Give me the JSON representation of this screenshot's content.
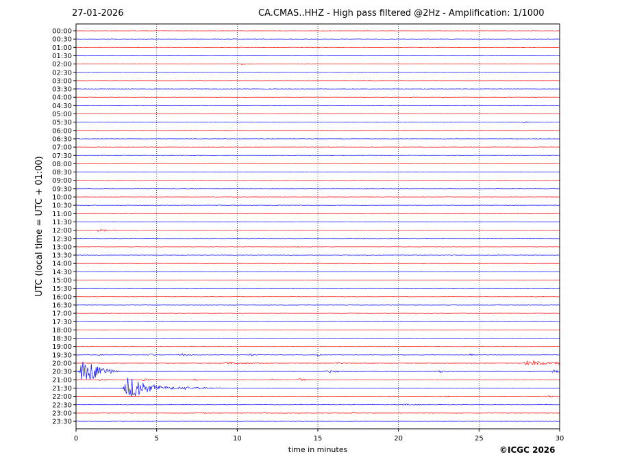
{
  "header": {
    "date": "27-01-2026",
    "title": "CA.CMAS..HHZ - High pass filtered @2Hz - Amplification: 1/1000"
  },
  "footer": {
    "copyright": "©ICGC 2026"
  },
  "chart_data": {
    "type": "line",
    "title": "CA.CMAS..HHZ - High pass filtered @2Hz - Amplification: 1/1000",
    "xlabel": "time in minutes",
    "ylabel": "UTC (local time = UTC + 01:00)",
    "xlim": [
      0,
      30
    ],
    "x_ticks": [
      0,
      5,
      10,
      15,
      20,
      25,
      30
    ],
    "vertical_grid": [
      5,
      10,
      15,
      20,
      25
    ],
    "rows": [
      "00:00",
      "00:30",
      "01:00",
      "01:30",
      "02:00",
      "02:30",
      "03:00",
      "03:30",
      "04:00",
      "04:30",
      "05:00",
      "05:30",
      "06:00",
      "06:30",
      "07:00",
      "07:30",
      "08:00",
      "08:30",
      "09:00",
      "09:30",
      "10:00",
      "10:30",
      "11:00",
      "11:30",
      "12:00",
      "12:30",
      "13:00",
      "13:30",
      "14:00",
      "14:30",
      "15:00",
      "15:30",
      "16:00",
      "16:30",
      "17:00",
      "17:30",
      "18:00",
      "18:30",
      "19:00",
      "19:30",
      "20:00",
      "20:30",
      "21:00",
      "21:30",
      "22:00",
      "22:30",
      "23:00",
      "23:30"
    ],
    "row_colors": [
      "#ff0000",
      "#0000ff"
    ],
    "events": [
      {
        "row": "02:00",
        "t": 10.3,
        "amp": 1.2,
        "dur": 0.4
      },
      {
        "row": "05:30",
        "t": 27.8,
        "amp": 1.8,
        "dur": 0.3
      },
      {
        "row": "12:00",
        "t": 1.4,
        "amp": 2.5,
        "dur": 0.6
      },
      {
        "row": "13:00",
        "t": 13.7,
        "amp": 1.2,
        "dur": 0.2
      },
      {
        "row": "19:00",
        "t": 10.5,
        "amp": 1.0,
        "dur": 0.2
      },
      {
        "row": "19:00",
        "t": 20.6,
        "amp": 1.0,
        "dur": 0.2
      },
      {
        "row": "19:30",
        "t": 1.4,
        "amp": 1.8,
        "dur": 0.3
      },
      {
        "row": "19:30",
        "t": 4.5,
        "amp": 2.0,
        "dur": 0.4
      },
      {
        "row": "19:30",
        "t": 6.5,
        "amp": 2.2,
        "dur": 0.6
      },
      {
        "row": "19:30",
        "t": 10.8,
        "amp": 2.5,
        "dur": 0.2
      },
      {
        "row": "19:30",
        "t": 15.0,
        "amp": 2.0,
        "dur": 0.2
      },
      {
        "row": "19:30",
        "t": 24.4,
        "amp": 1.8,
        "dur": 0.3
      },
      {
        "row": "20:00",
        "t": 9.4,
        "amp": 2.0,
        "dur": 1.2
      },
      {
        "row": "20:00",
        "t": 16.2,
        "amp": 1.8,
        "dur": 0.3
      },
      {
        "row": "20:00",
        "t": 28.0,
        "amp": 5.0,
        "dur": 1.0
      },
      {
        "row": "20:00",
        "t": 29.8,
        "amp": 4.0,
        "dur": 0.3
      },
      {
        "row": "20:30",
        "t": 0.4,
        "amp": 22.0,
        "dur": 0.9
      },
      {
        "row": "20:30",
        "t": 9.8,
        "amp": 1.8,
        "dur": 0.4
      },
      {
        "row": "20:30",
        "t": 15.6,
        "amp": 2.0,
        "dur": 0.8
      },
      {
        "row": "20:30",
        "t": 22.5,
        "amp": 2.0,
        "dur": 0.6
      },
      {
        "row": "20:30",
        "t": 29.6,
        "amp": 2.5,
        "dur": 0.4
      },
      {
        "row": "21:00",
        "t": 1.5,
        "amp": 2.0,
        "dur": 0.5
      },
      {
        "row": "21:00",
        "t": 4.2,
        "amp": 1.8,
        "dur": 0.8
      },
      {
        "row": "21:00",
        "t": 7.3,
        "amp": 1.5,
        "dur": 0.4
      },
      {
        "row": "21:00",
        "t": 12.1,
        "amp": 1.8,
        "dur": 0.3
      },
      {
        "row": "21:00",
        "t": 13.8,
        "amp": 2.0,
        "dur": 0.5
      },
      {
        "row": "21:30",
        "t": 3.2,
        "amp": 18.0,
        "dur": 1.2
      },
      {
        "row": "21:30",
        "t": 5.3,
        "amp": 2.2,
        "dur": 1.2
      },
      {
        "row": "21:30",
        "t": 6.5,
        "amp": 2.5,
        "dur": 1.5
      },
      {
        "row": "22:00",
        "t": 22.9,
        "amp": 1.2,
        "dur": 0.4
      },
      {
        "row": "22:00",
        "t": 29.3,
        "amp": 1.2,
        "dur": 0.4
      },
      {
        "row": "22:30",
        "t": 20.4,
        "amp": 1.2,
        "dur": 1.0
      },
      {
        "row": "23:00",
        "t": 7.9,
        "amp": 1.0,
        "dur": 0.2
      },
      {
        "row": "23:00",
        "t": 11.7,
        "amp": 1.0,
        "dur": 0.2
      },
      {
        "row": "23:00",
        "t": 17.1,
        "amp": 1.0,
        "dur": 0.2
      }
    ]
  }
}
